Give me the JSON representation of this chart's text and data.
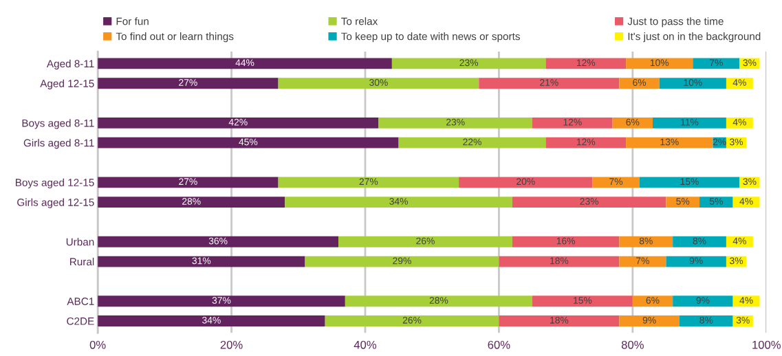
{
  "chart_data": {
    "type": "bar",
    "orientation": "horizontal",
    "stacked": true,
    "data_labels": true,
    "grid": "x",
    "legend": "top",
    "categories": [
      "Aged 8-11",
      "Aged 12-15",
      null,
      "Boys aged 8-11",
      "Girls aged 8-11",
      null,
      "Boys aged 12-15",
      "Girls aged 12-15",
      null,
      "Urban",
      "Rural",
      null,
      "ABC1",
      "C2DE"
    ],
    "xlim": [
      0,
      100
    ],
    "xticks": [
      {
        "value": 0,
        "label": "0%"
      },
      {
        "value": 20,
        "label": "20%"
      },
      {
        "value": 40,
        "label": "40%"
      },
      {
        "value": 60,
        "label": "60%"
      },
      {
        "value": 80,
        "label": "80%"
      },
      {
        "value": 100,
        "label": "100%"
      }
    ],
    "series": [
      {
        "name": "For fun",
        "color": "#63235f",
        "values": [
          44,
          27,
          null,
          42,
          45,
          null,
          27,
          28,
          null,
          36,
          31,
          null,
          37,
          34
        ],
        "value_labels": [
          "44%",
          "27%",
          null,
          "42%",
          "45%",
          null,
          "27%",
          "28%",
          null,
          "36%",
          "31%",
          null,
          "37%",
          "34%"
        ]
      },
      {
        "name": "To relax",
        "color": "#a6cf38",
        "values": [
          23,
          30,
          null,
          23,
          22,
          null,
          27,
          34,
          null,
          26,
          29,
          null,
          28,
          26
        ],
        "value_labels": [
          "23%",
          "30%",
          null,
          "23%",
          "22%",
          null,
          "27%",
          "34%",
          null,
          "26%",
          "29%",
          null,
          "28%",
          "26%"
        ]
      },
      {
        "name": "Just to pass the time",
        "color": "#e85a68",
        "values": [
          12,
          21,
          null,
          12,
          12,
          null,
          20,
          23,
          null,
          16,
          18,
          null,
          15,
          18
        ],
        "value_labels": [
          "12%",
          "21%",
          null,
          "12%",
          "12%",
          null,
          "20%",
          "23%",
          null,
          "16%",
          "18%",
          null,
          "15%",
          "18%"
        ]
      },
      {
        "name": "To find out or learn things",
        "color": "#f7941e",
        "values": [
          10,
          6,
          null,
          6,
          13,
          null,
          7,
          5,
          null,
          8,
          7,
          null,
          6,
          9
        ],
        "value_labels": [
          "10%",
          "6%",
          null,
          "6%",
          "13%",
          null,
          "7%",
          "5%",
          null,
          "8%",
          "7%",
          null,
          "6%",
          "9%"
        ]
      },
      {
        "name": "To keep up to date with news or sports",
        "color": "#00a9b8",
        "values": [
          7,
          10,
          null,
          11,
          2,
          null,
          15,
          5,
          null,
          8,
          9,
          null,
          9,
          8
        ],
        "value_labels": [
          "7%",
          "10%",
          null,
          "11%",
          "2%",
          null,
          "15%",
          "5%",
          null,
          "8%",
          "9%",
          null,
          "9%",
          "8%"
        ]
      },
      {
        "name": "It's just on in the background",
        "color": "#fff200",
        "values": [
          3,
          4,
          null,
          4,
          3,
          null,
          3,
          4,
          null,
          4,
          3,
          null,
          4,
          3
        ],
        "value_labels": [
          "3%",
          "4%",
          null,
          "4%",
          "3%",
          null,
          "3%",
          "4%",
          null,
          "4%",
          "3%",
          null,
          "4%",
          "3%"
        ]
      }
    ]
  }
}
